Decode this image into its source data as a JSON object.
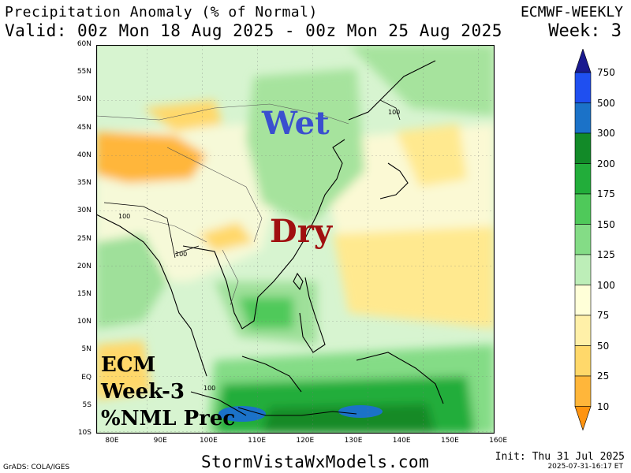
{
  "header": {
    "title": "Precipitation Anomaly (% of Normal)",
    "valid": "Valid: 00z Mon 18 Aug 2025 - 00z Mon 25 Aug 2025",
    "model": "ECMWF-WEEKLY",
    "week": "Week: 3"
  },
  "map": {
    "lat_labels": [
      "60N",
      "55N",
      "50N",
      "45N",
      "40N",
      "35N",
      "30N",
      "25N",
      "20N",
      "15N",
      "10N",
      "5N",
      "EQ",
      "5S",
      "10S"
    ],
    "lon_labels": [
      "80E",
      "90E",
      "100E",
      "110E",
      "120E",
      "130E",
      "140E",
      "150E",
      "160E"
    ],
    "contour_labels": [
      "100",
      "100",
      "100",
      "100"
    ],
    "annotations": {
      "wet": "Wet",
      "dry": "Dry",
      "ecm_line1": "ECM",
      "ecm_line2": "Week-3",
      "ecm_line3": "%NML Prec"
    },
    "colors": {
      "wet_text": "#3a4fcf",
      "dry_text": "#a01010"
    }
  },
  "colorbar": {
    "labels": [
      "750",
      "500",
      "300",
      "200",
      "175",
      "150",
      "125",
      "100",
      "75",
      "50",
      "25",
      "10"
    ],
    "colors": [
      "#1a1a8f",
      "#1f4ff0",
      "#1b72c8",
      "#128a28",
      "#22ad3a",
      "#4fc95a",
      "#84dc86",
      "#bdeeb8",
      "#ffffd8",
      "#fff0a8",
      "#ffd86a",
      "#ffb63a",
      "#ff9410"
    ]
  },
  "footer": {
    "site": "StormVistaWxModels.com",
    "grads": "GrADS: COLA/IGES",
    "init": "Init: Thu 31 Jul 2025",
    "timestamp": "2025-07-31-16:17 ET"
  }
}
